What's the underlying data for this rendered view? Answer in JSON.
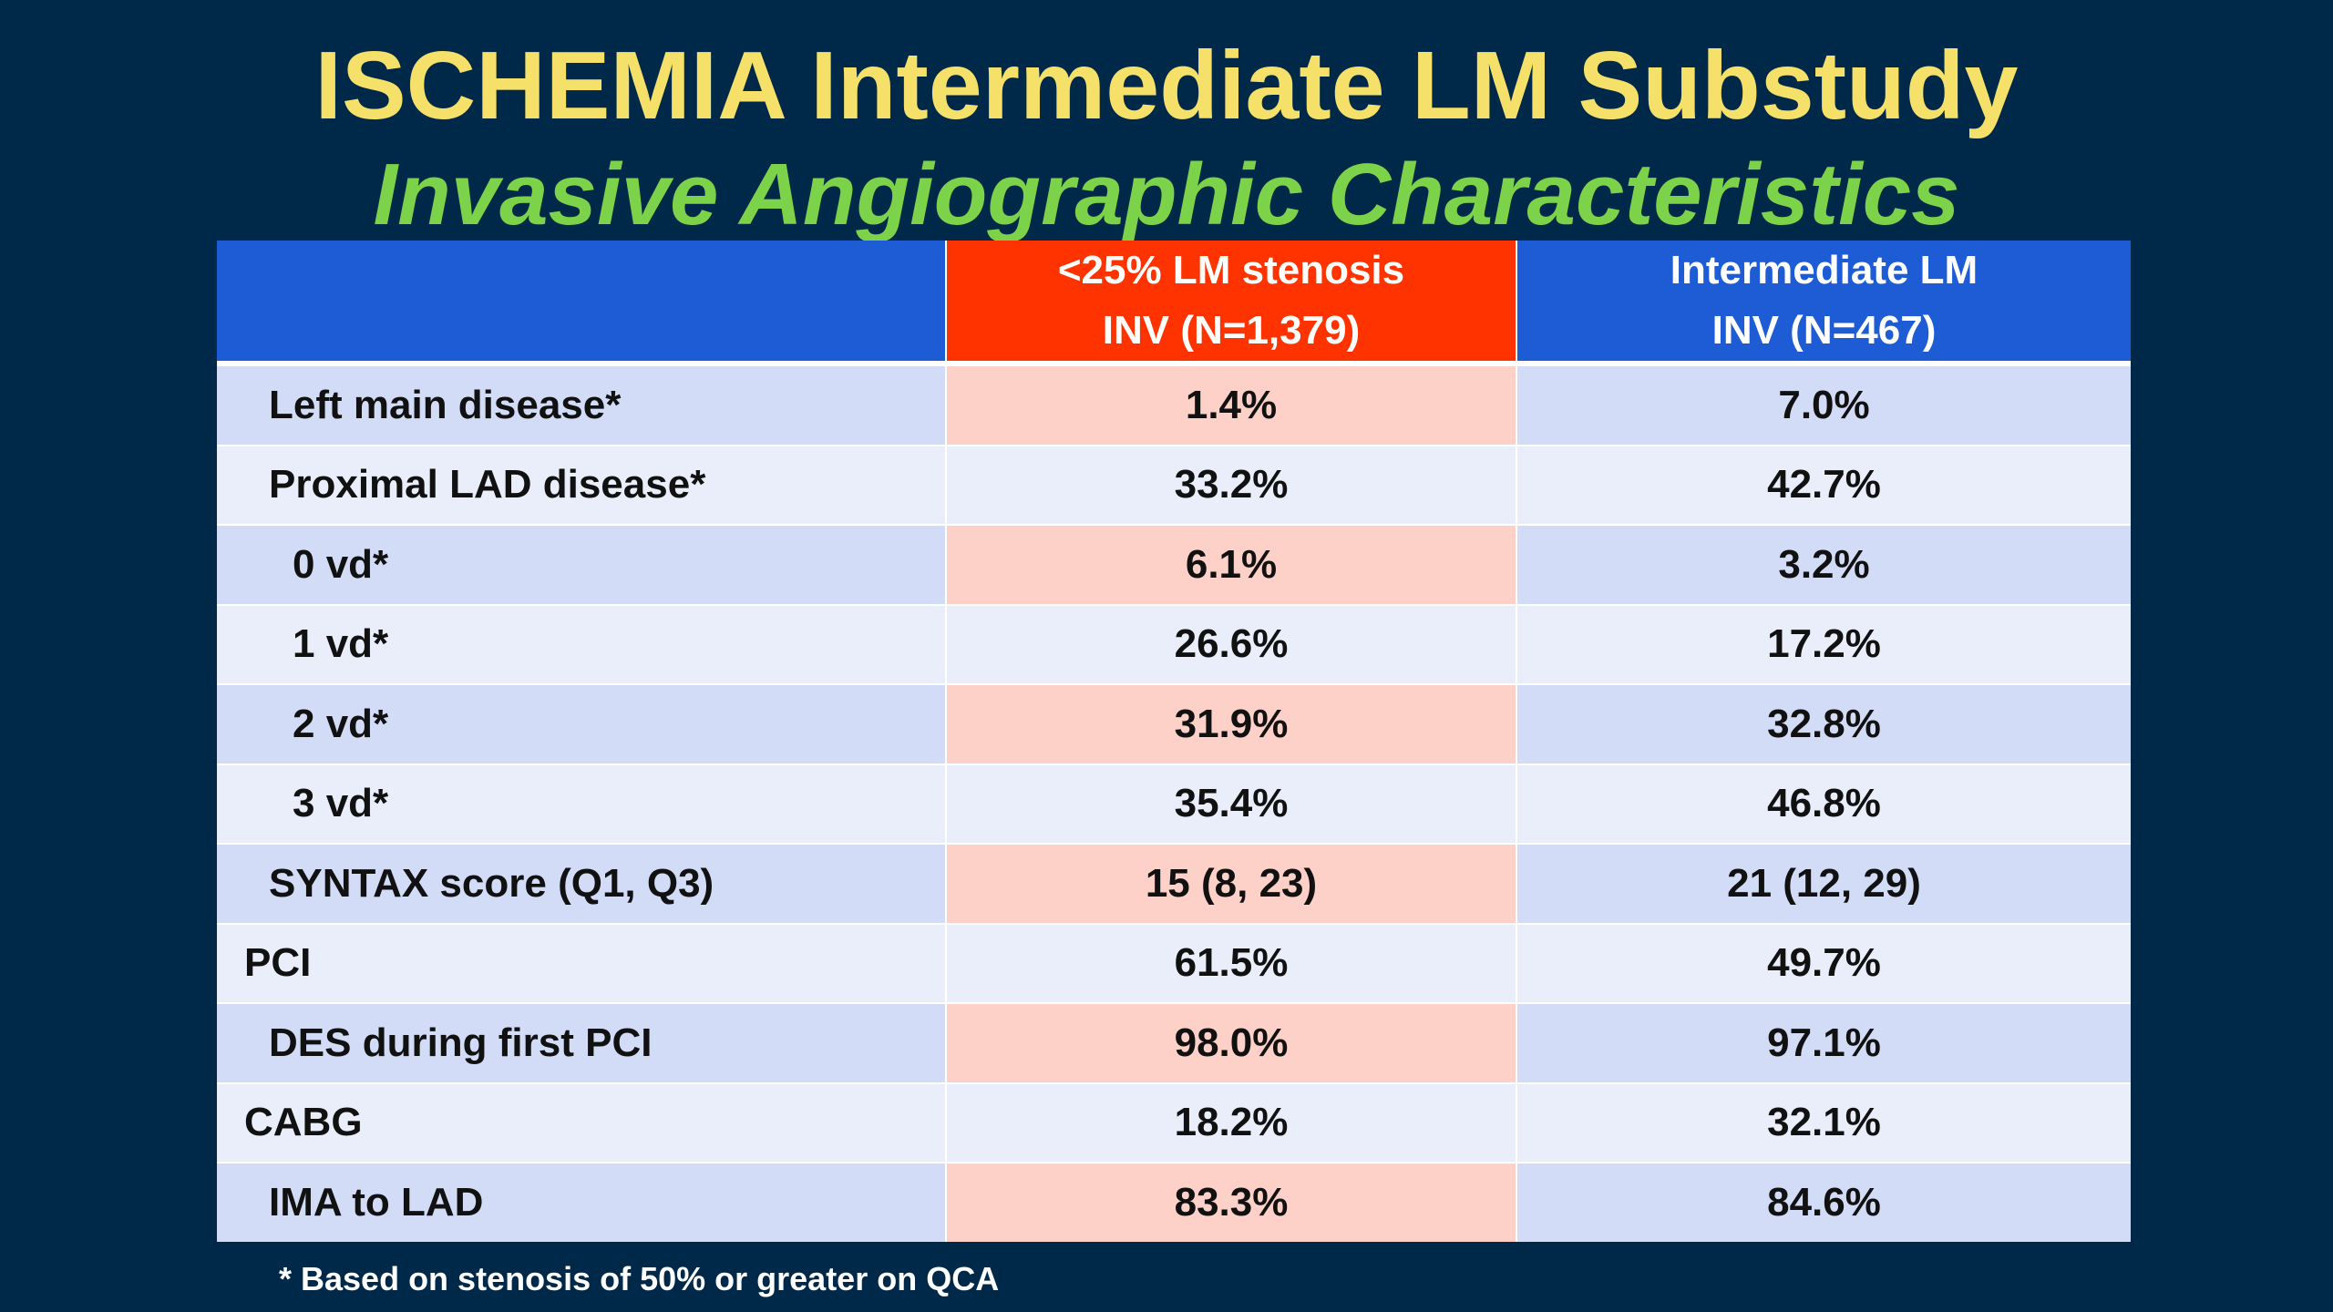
{
  "title": "ISCHEMIA Intermediate LM Substudy",
  "subtitle": "Invasive Angiographic Characteristics",
  "table": {
    "headers": {
      "blank": "",
      "ref": {
        "line1": "<25% LM stenosis",
        "line2": "INV (N=1,379)"
      },
      "int": {
        "line1": "Intermediate LM",
        "line2": "INV (N=467)"
      }
    },
    "rows": [
      {
        "label": "Left main disease*",
        "ref": "1.4%",
        "int": "7.0%"
      },
      {
        "label": "Proximal LAD disease*",
        "ref": "33.2%",
        "int": "42.7%"
      },
      {
        "label": "0 vd*",
        "ref": "6.1%",
        "int": "3.2%"
      },
      {
        "label": "1 vd*",
        "ref": "26.6%",
        "int": "17.2%"
      },
      {
        "label": "2 vd*",
        "ref": "31.9%",
        "int": "32.8%"
      },
      {
        "label": "3 vd*",
        "ref": "35.4%",
        "int": "46.8%"
      },
      {
        "label": "SYNTAX score (Q1, Q3)",
        "ref": "15 (8, 23)",
        "int": "21 (12, 29)"
      },
      {
        "label": "PCI",
        "ref": "61.5%",
        "int": "49.7%"
      },
      {
        "label": "DES during first PCI",
        "ref": "98.0%",
        "int": "97.1%"
      },
      {
        "label": "CABG",
        "ref": "18.2%",
        "int": "32.1%"
      },
      {
        "label": "IMA to LAD",
        "ref": "83.3%",
        "int": "84.6%"
      }
    ]
  },
  "footnote": "* Based on stenosis of 50% or greater on QCA",
  "colors": {
    "background": "#002848",
    "title": "#f5e06a",
    "subtitle": "#7cd34a",
    "header_blue": "#1e5cd6",
    "header_red": "#ff3300",
    "row_blue": "#d3dcf7",
    "row_pink": "#fdd0c8",
    "row_light": "#eaeefb"
  }
}
